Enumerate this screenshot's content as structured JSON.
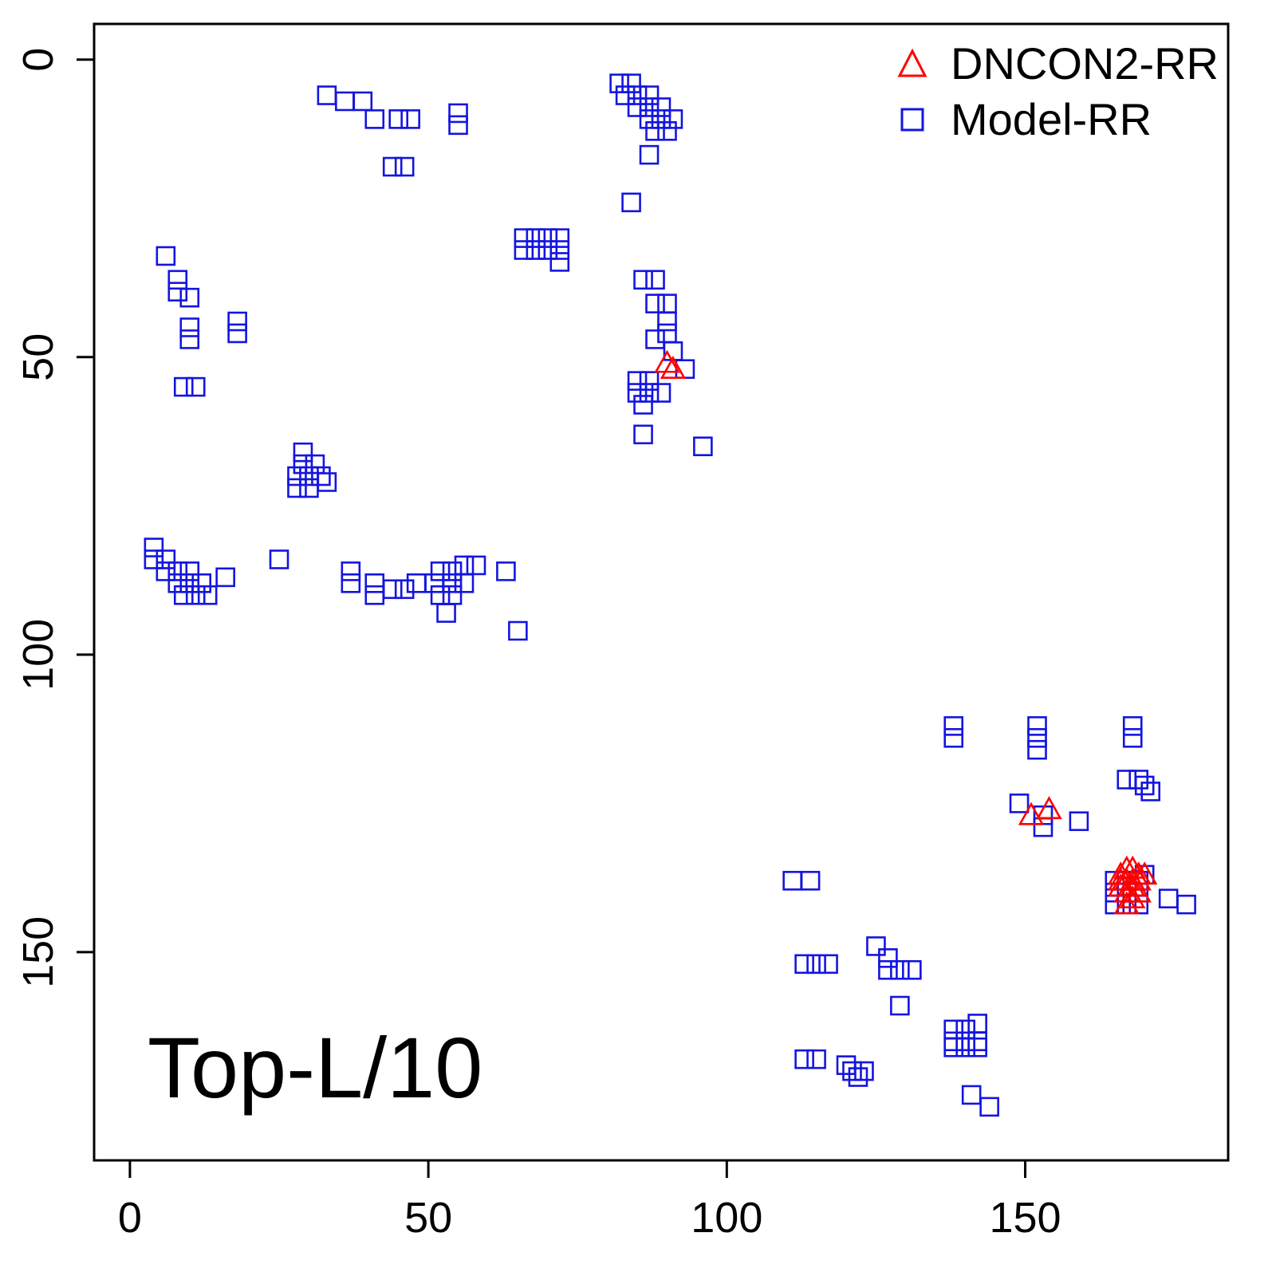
{
  "chart_data": {
    "type": "scatter",
    "title": "Top-L/10",
    "xlabel": "",
    "ylabel": "",
    "x_ticks": [
      0,
      50,
      100,
      150
    ],
    "y_ticks": [
      0,
      50,
      100,
      150
    ],
    "xlim": [
      -6,
      184
    ],
    "ylim": [
      -6,
      185
    ],
    "y_axis_inverted": true,
    "grid": false,
    "legend_position": "top-right",
    "axis_color": "#000000",
    "series": [
      {
        "name": "DNCON2-RR",
        "marker": "triangle-open",
        "color": "#ff0000",
        "points": [
          [
            90,
            51
          ],
          [
            91,
            52
          ],
          [
            151,
            127
          ],
          [
            154,
            126
          ],
          [
            166,
            137
          ],
          [
            167,
            136
          ],
          [
            168,
            136
          ],
          [
            169,
            137
          ],
          [
            170,
            137
          ],
          [
            166,
            138
          ],
          [
            167,
            138
          ],
          [
            168,
            138
          ],
          [
            169,
            138
          ],
          [
            166,
            139
          ],
          [
            168,
            139
          ],
          [
            167,
            140
          ],
          [
            169,
            140
          ],
          [
            168,
            141
          ],
          [
            167,
            142
          ]
        ]
      },
      {
        "name": "Model-RR",
        "marker": "square-open",
        "color": "#1414e0",
        "points": [
          [
            33,
            6
          ],
          [
            36,
            7
          ],
          [
            39,
            7
          ],
          [
            41,
            10
          ],
          [
            45,
            10
          ],
          [
            47,
            10
          ],
          [
            55,
            9
          ],
          [
            55,
            11
          ],
          [
            44,
            18
          ],
          [
            46,
            18
          ],
          [
            82,
            4
          ],
          [
            84,
            4
          ],
          [
            83,
            6
          ],
          [
            85,
            6
          ],
          [
            87,
            6
          ],
          [
            85,
            8
          ],
          [
            87,
            8
          ],
          [
            89,
            8
          ],
          [
            87,
            10
          ],
          [
            89,
            10
          ],
          [
            91,
            10
          ],
          [
            88,
            12
          ],
          [
            90,
            12
          ],
          [
            87,
            16
          ],
          [
            84,
            24
          ],
          [
            66,
            30
          ],
          [
            68,
            30
          ],
          [
            70,
            30
          ],
          [
            72,
            30
          ],
          [
            66,
            32
          ],
          [
            68,
            32
          ],
          [
            70,
            32
          ],
          [
            72,
            32
          ],
          [
            72,
            34
          ],
          [
            6,
            33
          ],
          [
            8,
            37
          ],
          [
            8,
            39
          ],
          [
            10,
            40
          ],
          [
            10,
            45
          ],
          [
            10,
            47
          ],
          [
            18,
            44
          ],
          [
            18,
            46
          ],
          [
            9,
            55
          ],
          [
            11,
            55
          ],
          [
            86,
            37
          ],
          [
            88,
            37
          ],
          [
            88,
            41
          ],
          [
            90,
            41
          ],
          [
            90,
            44
          ],
          [
            90,
            46
          ],
          [
            88,
            47
          ],
          [
            91,
            49
          ],
          [
            93,
            52
          ],
          [
            85,
            54
          ],
          [
            87,
            54
          ],
          [
            85,
            56
          ],
          [
            87,
            56
          ],
          [
            89,
            56
          ],
          [
            86,
            58
          ],
          [
            86,
            63
          ],
          [
            96,
            65
          ],
          [
            29,
            66
          ],
          [
            29,
            68
          ],
          [
            31,
            68
          ],
          [
            28,
            70
          ],
          [
            30,
            70
          ],
          [
            32,
            70
          ],
          [
            28,
            72
          ],
          [
            30,
            72
          ],
          [
            33,
            71
          ],
          [
            4,
            82
          ],
          [
            4,
            84
          ],
          [
            6,
            84
          ],
          [
            6,
            86
          ],
          [
            8,
            86
          ],
          [
            10,
            86
          ],
          [
            8,
            88
          ],
          [
            10,
            88
          ],
          [
            12,
            88
          ],
          [
            9,
            90
          ],
          [
            11,
            90
          ],
          [
            13,
            90
          ],
          [
            16,
            87
          ],
          [
            25,
            84
          ],
          [
            37,
            86
          ],
          [
            37,
            88
          ],
          [
            41,
            88
          ],
          [
            41,
            90
          ],
          [
            44,
            89
          ],
          [
            46,
            89
          ],
          [
            48,
            88
          ],
          [
            51,
            88
          ],
          [
            52,
            86
          ],
          [
            54,
            86
          ],
          [
            56,
            85
          ],
          [
            58,
            85
          ],
          [
            54,
            88
          ],
          [
            56,
            88
          ],
          [
            52,
            90
          ],
          [
            54,
            90
          ],
          [
            53,
            93
          ],
          [
            63,
            86
          ],
          [
            65,
            96
          ],
          [
            138,
            112
          ],
          [
            138,
            114
          ],
          [
            152,
            112
          ],
          [
            152,
            114
          ],
          [
            152,
            116
          ],
          [
            168,
            112
          ],
          [
            168,
            114
          ],
          [
            167,
            121
          ],
          [
            169,
            121
          ],
          [
            170,
            122
          ],
          [
            171,
            123
          ],
          [
            149,
            125
          ],
          [
            153,
            127
          ],
          [
            153,
            129
          ],
          [
            159,
            128
          ],
          [
            111,
            138
          ],
          [
            114,
            138
          ],
          [
            165,
            138
          ],
          [
            167,
            138
          ],
          [
            169,
            138
          ],
          [
            170,
            137
          ],
          [
            165,
            140
          ],
          [
            167,
            140
          ],
          [
            169,
            140
          ],
          [
            165,
            142
          ],
          [
            167,
            142
          ],
          [
            169,
            142
          ],
          [
            174,
            141
          ],
          [
            177,
            142
          ],
          [
            125,
            149
          ],
          [
            127,
            151
          ],
          [
            113,
            152
          ],
          [
            115,
            152
          ],
          [
            117,
            152
          ],
          [
            127,
            153
          ],
          [
            129,
            153
          ],
          [
            131,
            153
          ],
          [
            129,
            159
          ],
          [
            113,
            168
          ],
          [
            115,
            168
          ],
          [
            120,
            169
          ],
          [
            121,
            170
          ],
          [
            122,
            171
          ],
          [
            123,
            170
          ],
          [
            138,
            163
          ],
          [
            140,
            163
          ],
          [
            142,
            162
          ],
          [
            138,
            165
          ],
          [
            140,
            165
          ],
          [
            142,
            165
          ],
          [
            138,
            166
          ],
          [
            140,
            166
          ],
          [
            142,
            166
          ],
          [
            141,
            174
          ],
          [
            144,
            176
          ]
        ]
      }
    ]
  }
}
